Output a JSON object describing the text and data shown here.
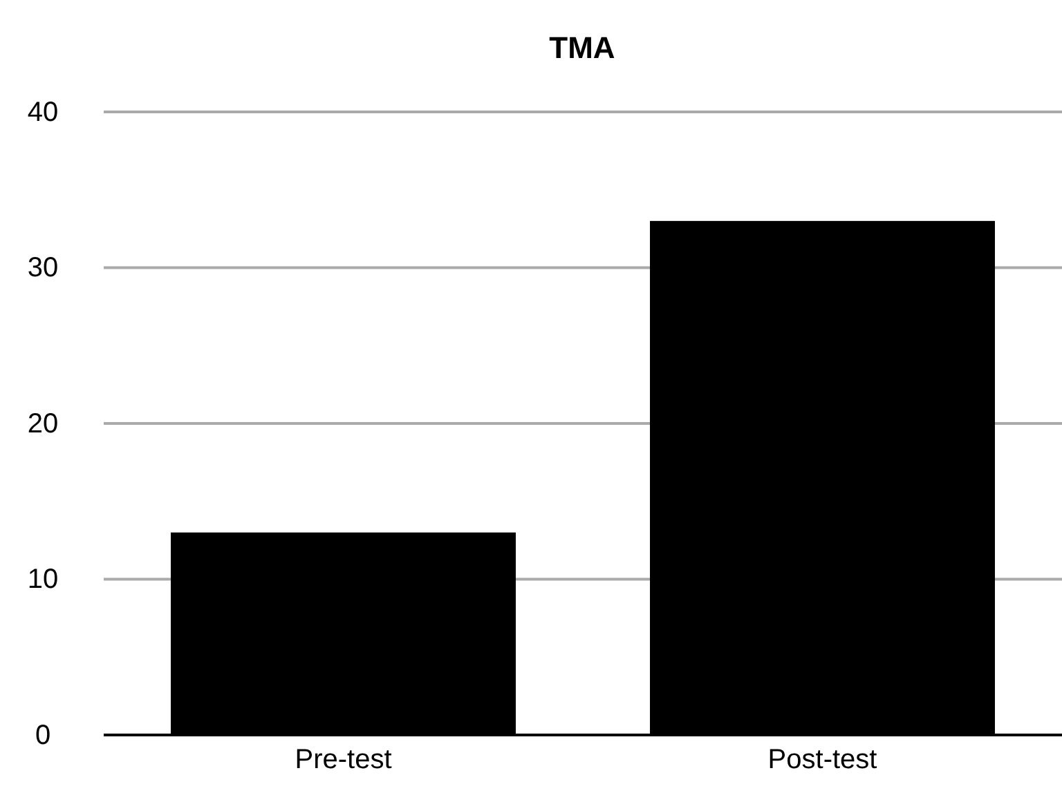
{
  "chart_data": {
    "type": "bar",
    "title": "TMA",
    "categories": [
      "Pre-test",
      "Post-test"
    ],
    "values": [
      13,
      33
    ],
    "color": "#000000",
    "ylim": [
      0,
      40
    ],
    "yticks": [
      0,
      10,
      20,
      30,
      40
    ],
    "grid": "y"
  }
}
